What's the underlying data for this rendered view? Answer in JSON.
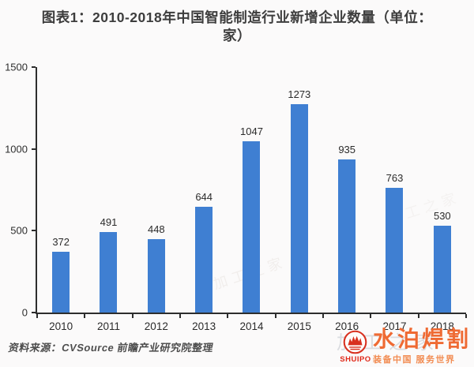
{
  "header": {
    "title_line1": "图表1：2010-2018年中国智能制造行业新增企业数量（单位：",
    "title_line2": "家）"
  },
  "chart_data": {
    "type": "bar",
    "title": "图表1：2010-2018年中国智能制造行业新增企业数量（单位：家）",
    "categories": [
      "2010",
      "2011",
      "2012",
      "2013",
      "2014",
      "2015",
      "2016",
      "2017",
      "2018"
    ],
    "values": [
      372,
      491,
      448,
      644,
      1047,
      1273,
      935,
      763,
      530
    ],
    "xlabel": "",
    "ylabel": "",
    "ylim": [
      0,
      1500
    ],
    "yticks": [
      0,
      500,
      1000,
      1500
    ],
    "bar_color": "#3f7fd2",
    "value_labels_shown": true,
    "grid": false,
    "legend": "none",
    "axis_color": "#2d2d2d"
  },
  "source": {
    "text": "资料来源：CVSource 前瞻产业研究院整理"
  },
  "logo": {
    "latin": "SHUIPO",
    "name": "水泊焊割",
    "tagline": "装备中国 服务世界",
    "name_color": "#ef6a33",
    "accent_red": "#e02818"
  },
  "watermark": {
    "text": "加工之家"
  }
}
